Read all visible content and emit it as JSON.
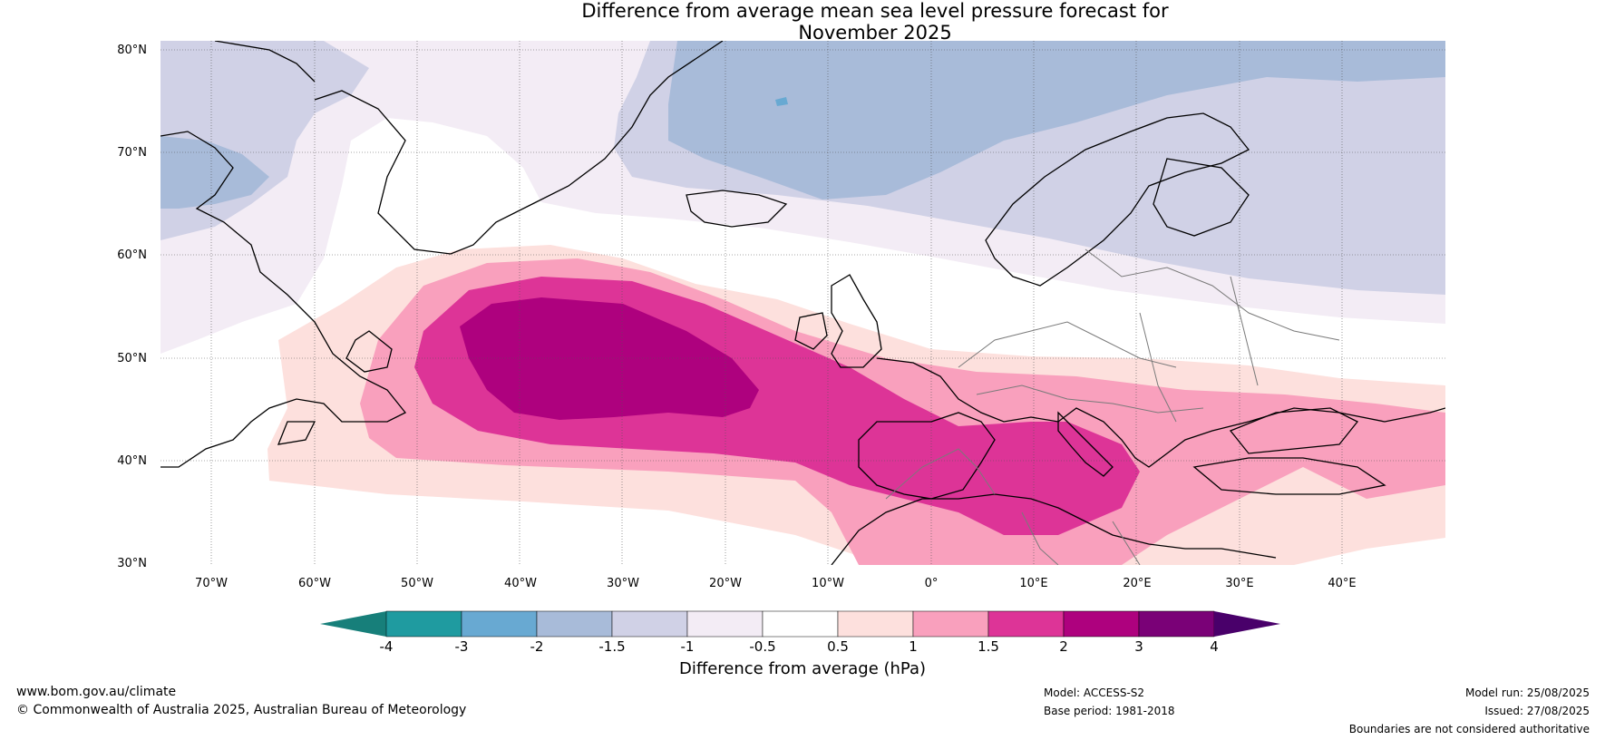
{
  "title_line1": "Difference from average mean sea level pressure forecast for",
  "title_line2": "November 2025",
  "lat_labels": [
    "80°N",
    "70°N",
    "60°N",
    "50°N",
    "40°N",
    "30°N"
  ],
  "lon_labels": [
    "70°W",
    "60°W",
    "50°W",
    "40°W",
    "30°W",
    "20°W",
    "10°W",
    "0°",
    "10°E",
    "20°E",
    "30°E",
    "40°E"
  ],
  "colorbar": {
    "label": "Difference from average (hPa)",
    "ticks": [
      "-4",
      "-3",
      "-2",
      "-1.5",
      "-1",
      "-0.5",
      "0.5",
      "1",
      "1.5",
      "2",
      "3",
      "4"
    ],
    "colors": [
      "#177f7a",
      "#1f9ba0",
      "#68a9d2",
      "#a8bbd9",
      "#d0d1e6",
      "#f3ecf5",
      "#ffffff",
      "#fde0dd",
      "#f9a0bd",
      "#dd3497",
      "#ae017e",
      "#7a0177",
      "#49006a"
    ]
  },
  "footer": {
    "website": "www.bom.gov.au/climate",
    "copyright": "© Commonwealth of Australia 2025, Australian Bureau of Meteorology",
    "model": "Model: ACCESS-S2",
    "base_period": "Base period: 1981-2018",
    "model_run": "Model run: 25/08/2025",
    "issued": "Issued: 27/08/2025",
    "disclaimer": "Boundaries are not considered authoritative"
  }
}
